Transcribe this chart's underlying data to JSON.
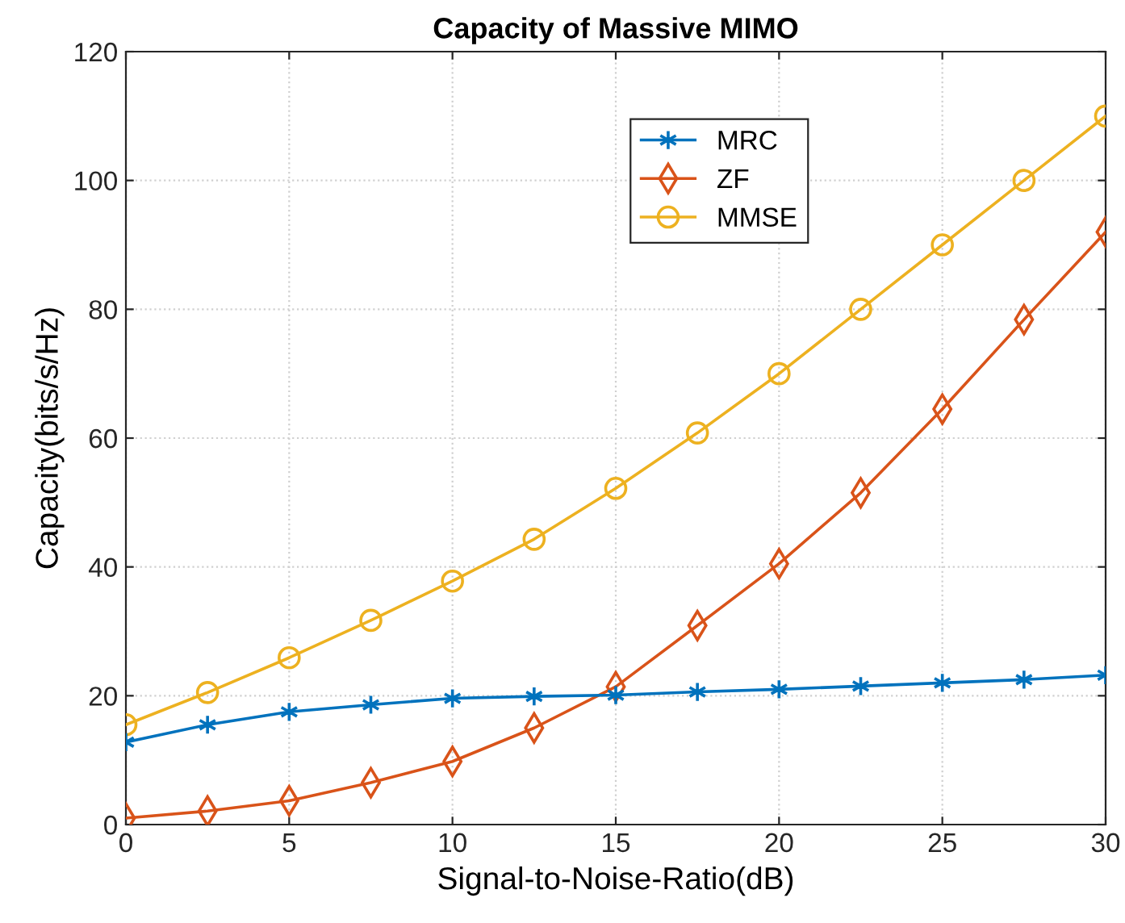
{
  "chart_data": {
    "type": "line",
    "title": "Capacity of Massive MIMO",
    "xlabel": "Signal-to-Noise-Ratio(dB)",
    "ylabel": "Capacity(bits/s/Hz)",
    "x": [
      0,
      2.5,
      5,
      7.5,
      10,
      12.5,
      15,
      17.5,
      20,
      22.5,
      25,
      27.5,
      30
    ],
    "series": [
      {
        "name": "MRC",
        "color": "#0072bd",
        "marker": "cross",
        "values": [
          12.8,
          15.5,
          17.5,
          18.6,
          19.6,
          19.9,
          20.1,
          20.6,
          21.0,
          21.5,
          22.0,
          22.5,
          23.2
        ]
      },
      {
        "name": "ZF",
        "color": "#d95319",
        "marker": "diamond",
        "values": [
          1.0,
          2.1,
          3.7,
          6.5,
          9.8,
          15.0,
          21.4,
          30.9,
          40.5,
          51.5,
          64.5,
          78.4,
          92.0
        ]
      },
      {
        "name": "MMSE",
        "color": "#edb120",
        "marker": "circle",
        "values": [
          15.5,
          20.5,
          25.9,
          31.7,
          37.8,
          44.3,
          52.2,
          60.8,
          70.0,
          80.0,
          90.0,
          100.0,
          110.0
        ]
      }
    ],
    "xlim": [
      0,
      30
    ],
    "xticks": [
      0,
      5,
      10,
      15,
      20,
      25,
      30
    ],
    "ylim": [
      0,
      120
    ],
    "yticks": [
      0,
      20,
      40,
      60,
      80,
      100,
      120
    ],
    "grid": true,
    "legend": "top right",
    "line_style": "solid"
  }
}
